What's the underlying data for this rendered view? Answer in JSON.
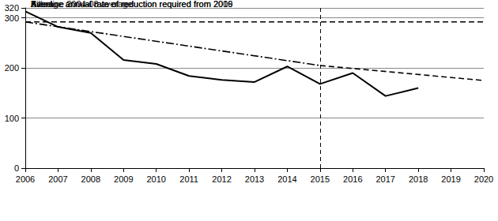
{
  "chart_data": {
    "type": "line",
    "xlim": [
      2006,
      2020
    ],
    "xticks": [
      2006,
      2007,
      2008,
      2009,
      2010,
      2011,
      2012,
      2013,
      2014,
      2015,
      2016,
      2017,
      2018,
      2019,
      2020
    ],
    "ylim": [
      0,
      320
    ],
    "yticks": [
      0,
      100,
      200,
      300
    ],
    "grid": true,
    "legend": "bottom",
    "vertical_line": 2015,
    "series": [
      {
        "name": "Baseline 2004-08 average",
        "color": "#000000",
        "line_style": "dashed",
        "x": [
          2006,
          2020
        ],
        "values": [
          292,
          292
        ]
      },
      {
        "name": "Killed",
        "color": "#000000",
        "line_style": "solid",
        "x": [
          2006,
          2007,
          2008,
          2009,
          2010,
          2011,
          2012,
          2013,
          2014,
          2015,
          2016,
          2017,
          2018
        ],
        "values": [
          313,
          282,
          270,
          216,
          208,
          184,
          176,
          172,
          203,
          168,
          190,
          144,
          160
        ]
      },
      {
        "name": "Average annual rate of reduction required from 2009",
        "color": "#000000",
        "line_style": "dashdot",
        "x": [
          2006,
          2015
        ],
        "values": [
          292,
          205
        ]
      },
      {
        "name": "Average annual rate of reduction required from 2016",
        "color": "#000000",
        "line_style": "dashed",
        "x": [
          2015,
          2020
        ],
        "values": [
          205,
          175
        ]
      }
    ]
  }
}
